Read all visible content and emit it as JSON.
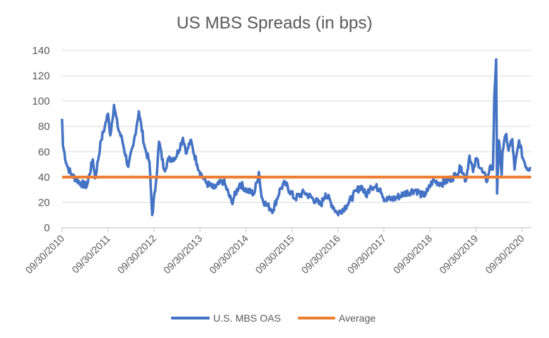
{
  "chart_data": {
    "type": "line",
    "title": "US MBS Spreads (in bps)",
    "xlabel": "",
    "ylabel": "",
    "x_units": "years since 09/30/2010",
    "ylim": [
      0,
      140
    ],
    "xlim": [
      0,
      10.2
    ],
    "yticks": [
      0,
      20,
      40,
      60,
      80,
      100,
      120,
      140
    ],
    "xtick_labels": [
      "09/30/2010",
      "09/30/2011",
      "09/30/2012",
      "09/30/2013",
      "09/30/2014",
      "09/30/2015",
      "09/30/2016",
      "09/30/2017",
      "09/30/2018",
      "09/30/2019",
      "09/30/2020"
    ],
    "grid": true,
    "legend_position": "bottom",
    "series": [
      {
        "name": "U.S. MBS OAS",
        "color": "#4472C4",
        "x": [
          0,
          0.02,
          0.1,
          0.2,
          0.41,
          0.54,
          0.67,
          0.72,
          0.85,
          0.93,
          1.0,
          1.05,
          1.13,
          1.21,
          1.31,
          1.44,
          1.55,
          1.67,
          1.8,
          1.9,
          1.96,
          2.04,
          2.11,
          2.22,
          2.32,
          2.48,
          2.63,
          2.71,
          2.79,
          2.94,
          3.04,
          3.15,
          3.3,
          3.51,
          3.69,
          3.87,
          4.03,
          4.18,
          4.28,
          4.34,
          4.44,
          4.59,
          4.75,
          4.85,
          5.06,
          5.27,
          5.63,
          5.73,
          5.99,
          6.2,
          6.4,
          6.51,
          6.61,
          6.71,
          6.92,
          7.02,
          7.23,
          7.44,
          7.69,
          7.85,
          7.95,
          8.06,
          8.26,
          8.47,
          8.57,
          8.68,
          8.78,
          8.86,
          8.94,
          9.01,
          9.14,
          9.25,
          9.3,
          9.37,
          9.4,
          9.44,
          9.46,
          9.5,
          9.56,
          9.58,
          9.66,
          9.71,
          9.79,
          9.84,
          9.94,
          10.02,
          10.13,
          10.18
        ],
        "values": [
          86,
          65,
          50,
          42,
          35,
          33,
          54,
          39,
          69,
          80,
          90,
          73,
          97,
          80,
          69,
          48,
          65,
          92,
          63,
          52,
          10,
          35,
          68,
          46,
          54,
          56,
          71,
          59,
          69,
          50,
          41,
          35,
          31,
          37,
          20,
          35,
          29,
          27,
          44,
          24,
          18,
          14,
          31,
          35,
          23,
          28,
          18,
          27,
          11,
          18,
          29,
          33,
          25,
          33,
          31,
          22,
          23,
          27,
          30,
          25,
          29,
          37,
          35,
          39,
          42,
          48,
          37,
          57,
          44,
          55,
          44,
          37,
          48,
          46,
          104,
          133,
          27,
          69,
          42,
          61,
          74,
          61,
          70,
          46,
          69,
          55,
          46,
          48
        ]
      },
      {
        "name": "Average",
        "color": "#ED7D31",
        "x": [
          0,
          10.2
        ],
        "values": [
          40,
          40
        ]
      }
    ]
  }
}
